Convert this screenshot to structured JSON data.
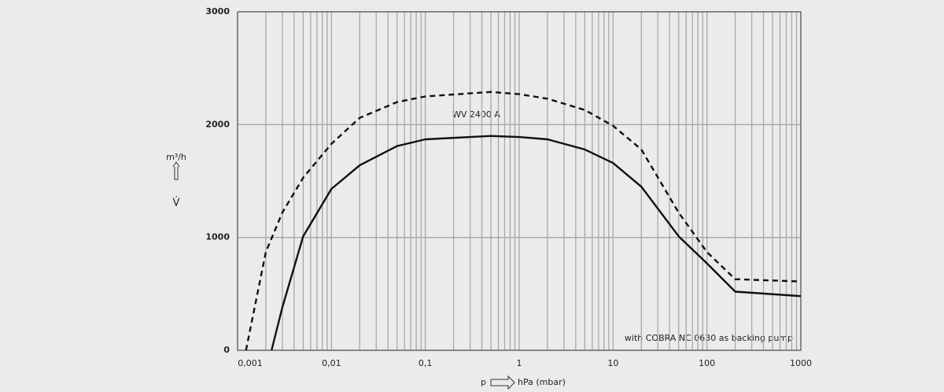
{
  "chart_data": {
    "type": "line",
    "annotations": [
      "WV 2400 A",
      "with COBRA NC 0630 as backing pump"
    ],
    "y_label": "m³/h",
    "y_symbol": "V̇",
    "x_symbol": "p",
    "x_label": "hPa (mbar)",
    "log_x": true,
    "grid": true,
    "xlim": [
      0.001,
      1000
    ],
    "ylim": [
      0,
      3000
    ],
    "xticks": [
      {
        "value": 0.001,
        "label": "0,001"
      },
      {
        "value": 0.01,
        "label": "0,01"
      },
      {
        "value": 0.1,
        "label": "0,1"
      },
      1,
      10,
      100,
      1000
    ],
    "yticks": [
      0,
      1000,
      2000,
      3000
    ],
    "series": [
      {
        "color": "#111111",
        "dashed": true,
        "x": [
          0.00123,
          0.002,
          0.003,
          0.005,
          0.01,
          0.02,
          0.05,
          0.1,
          0.5,
          1,
          2,
          5,
          10,
          20,
          50,
          100,
          200,
          1000
        ],
        "values": [
          0,
          870,
          1220,
          1530,
          1830,
          2060,
          2200,
          2250,
          2290,
          2270,
          2230,
          2130,
          1990,
          1780,
          1220,
          870,
          630,
          610
        ]
      },
      {
        "color": "#111111",
        "dashed": false,
        "x": [
          0.0023,
          0.003,
          0.005,
          0.01,
          0.02,
          0.05,
          0.1,
          0.5,
          1,
          2,
          5,
          10,
          20,
          50,
          100,
          200,
          1000
        ],
        "values": [
          0,
          380,
          1010,
          1430,
          1640,
          1810,
          1870,
          1900,
          1890,
          1870,
          1780,
          1660,
          1450,
          1010,
          770,
          520,
          480
        ]
      }
    ]
  }
}
